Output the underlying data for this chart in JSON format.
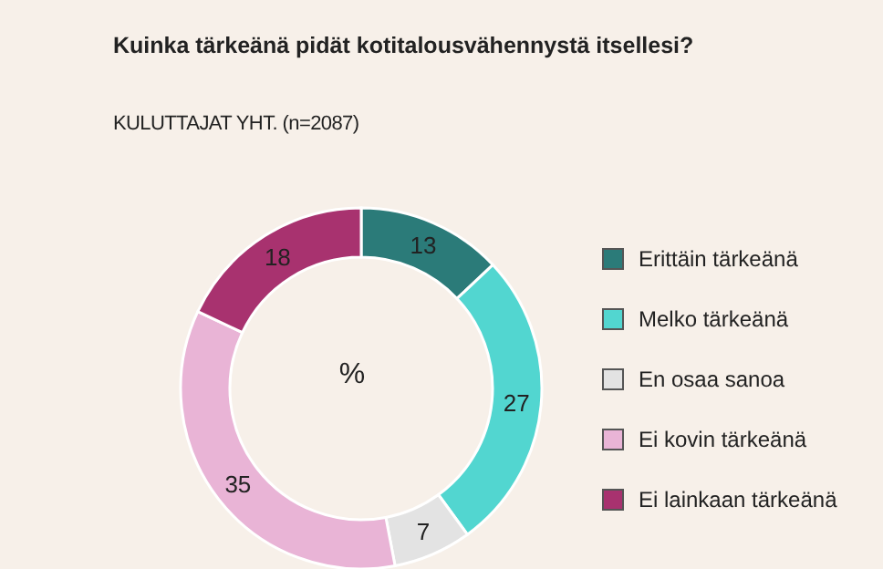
{
  "chart_data": {
    "type": "donut",
    "title": "Kuinka tärkeänä pidät kotitalousvähennystä itsellesi?",
    "subtitle": "KULUTTAJAT YHT. (n=2087)",
    "annotations": [
      "%"
    ],
    "categories": [
      "Erittäin tärkeänä",
      "Melko tärkeänä",
      "En osaa sanoa",
      "Ei kovin tärkeänä",
      "Ei lainkaan tärkeänä"
    ],
    "values": [
      13,
      27,
      7,
      35,
      18
    ],
    "colors": [
      "#2b7b79",
      "#52d6d0",
      "#e3e3e3",
      "#e9b4d6",
      "#a8326f"
    ],
    "data_labels": true,
    "legend": "right"
  }
}
